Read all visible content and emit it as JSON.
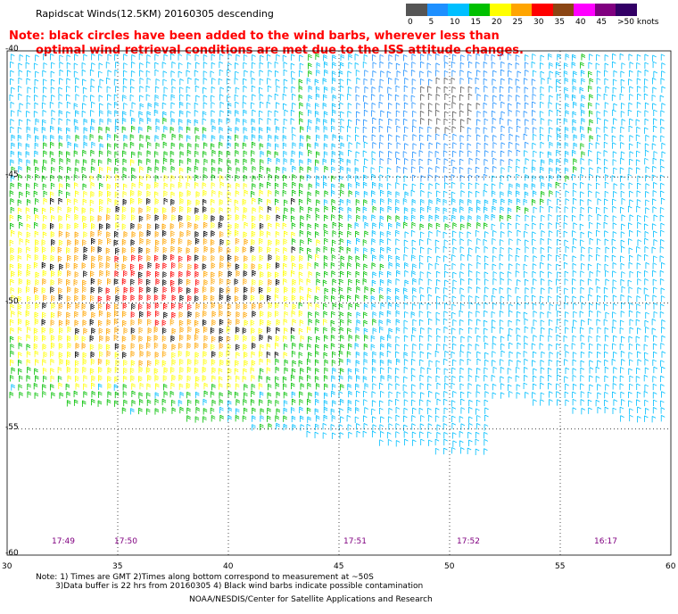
{
  "header": {
    "title": "Rapidscat Winds(12.5KM) 20160305 descending",
    "note_line1": "Note: black circles have been added to the wind barbs, wherever less than",
    "note_line2": "optimal wind retrieval conditions are met due to the ISS attitude changes."
  },
  "legend": {
    "colors": [
      "#555555",
      "#1e90ff",
      "#00bfff",
      "#00c000",
      "#ffff00",
      "#ffa500",
      "#ff0000",
      "#8b4513",
      "#ff00ff",
      "#800080",
      "#330066"
    ],
    "labels": [
      "0",
      "5",
      "10",
      "15",
      "20",
      "25",
      "30",
      "35",
      "40",
      "45",
      ">50 knots"
    ]
  },
  "axes": {
    "lat_labels": [
      "-40",
      "-45",
      "-50",
      "-55",
      "-60"
    ],
    "lon_labels": [
      "30",
      "35",
      "40",
      "45",
      "50",
      "55",
      "60"
    ]
  },
  "times": [
    "17:49",
    "17:50",
    "17:51",
    "17:52",
    "16:17"
  ],
  "footer": {
    "line1": "Note: 1) Times are GMT 2)Times along bottom correspond to measurement at ~50S",
    "line2": "3)Data buffer is 22 hrs from 20160305 4) Black wind barbs indicate possible contamination",
    "credit": "NOAA/NESDIS/Center for Satellite Applications and Research"
  }
}
